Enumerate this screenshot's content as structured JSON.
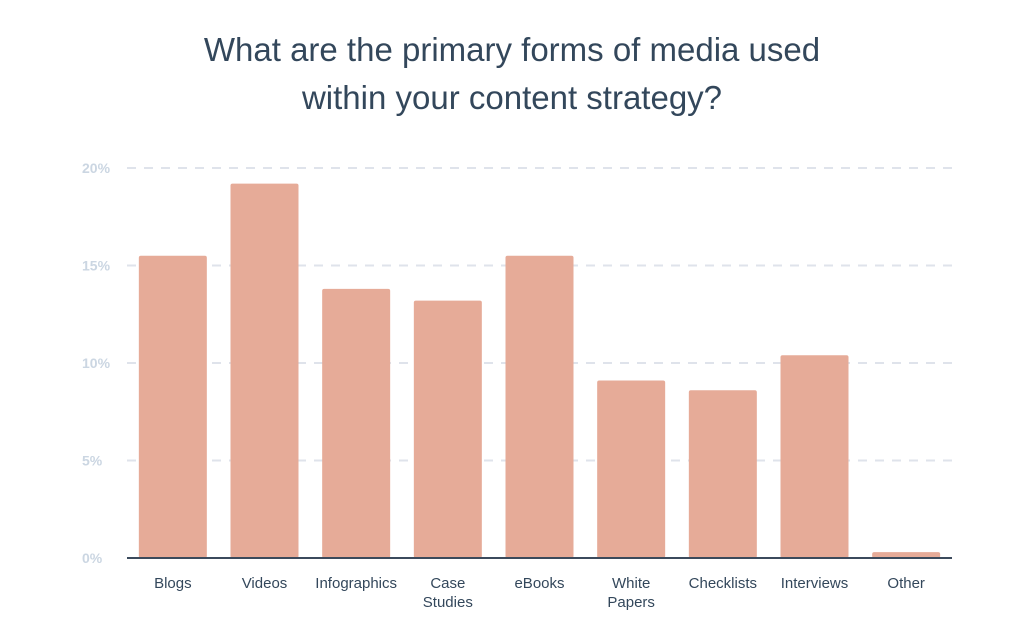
{
  "chart_data": {
    "type": "bar",
    "title": "What are the primary forms of media used\nwithin your content strategy?",
    "xlabel": "",
    "ylabel": "",
    "ylim": [
      0,
      20
    ],
    "yticks": [
      "0%",
      "5%",
      "10%",
      "15%",
      "20%"
    ],
    "ytick_values": [
      0,
      5,
      10,
      15,
      20
    ],
    "grid": true,
    "categories": [
      "Blogs",
      "Videos",
      "Infographics",
      "Case\nStudies",
      "eBooks",
      "White\nPapers",
      "Checklists",
      "Interviews",
      "Other"
    ],
    "values": [
      15.5,
      19.2,
      13.8,
      13.2,
      15.5,
      9.1,
      8.6,
      10.4,
      0.3
    ],
    "colors": {
      "bar": "#e6ab98",
      "title": "#33475b",
      "tick": "#cbd6e2",
      "grid": "#dfe3eb",
      "baseline": "#3b4a5c"
    }
  }
}
